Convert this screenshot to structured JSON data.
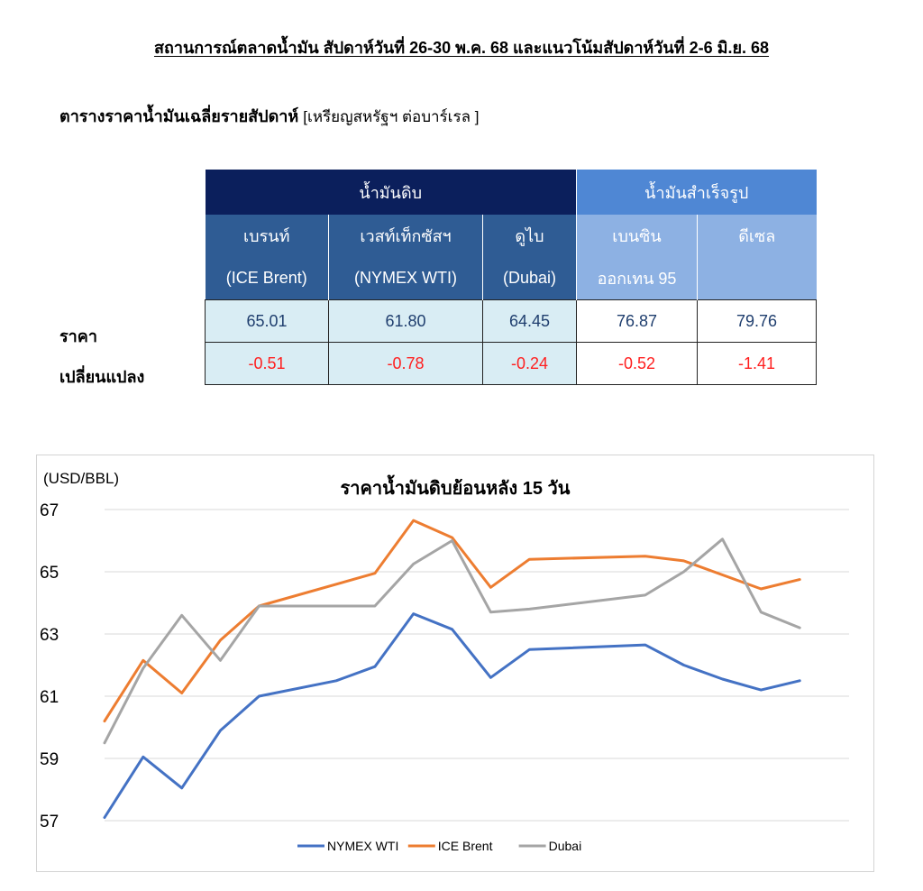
{
  "header": {
    "title": "สถานการณ์ตลาดน้ำมัน สัปดาห์วันที่ 26-30 พ.ค. 68 และแนวโน้มสัปดาห์วันที่ 2-6 มิ.ย. 68",
    "table_title": "ตารางราคาน้ำมันเฉลี่ยรายสัปดาห์",
    "table_unit": "[เหรียญสหรัฐฯ ต่อบาร์เรล ]"
  },
  "table": {
    "group_crude": "น้ำมันดิบ",
    "group_refined": "น้ำมันสำเร็จรูป",
    "columns": [
      {
        "line1": "เบรนท์",
        "line2": "(ICE Brent)"
      },
      {
        "line1": "เวสท์เท็กซัสฯ",
        "line2": "(NYMEX WTI)"
      },
      {
        "line1": "ดูไบ",
        "line2": "(Dubai)"
      },
      {
        "line1": "เบนซิน",
        "line2": "ออกเทน 95"
      },
      {
        "line1": "ดีเซล",
        "line2": ""
      }
    ],
    "row_price_label": "ราคา",
    "row_change_label": "เปลี่ยนแปลง",
    "price": [
      "65.01",
      "61.80",
      "64.45",
      "76.87",
      "79.76"
    ],
    "change": [
      "-0.51",
      "-0.78",
      "-0.24",
      "-0.52",
      "-1.41"
    ],
    "colors": {
      "crude_header": "#0b1f5c",
      "refined_header": "#4f87d4",
      "change_text": "#ff1f1f"
    }
  },
  "chart_data": {
    "type": "line",
    "title": "ราคาน้ำมันดิบย้อนหลัง 15 วัน",
    "ylabel": "(USD/BBL)",
    "xlabel": "",
    "ylim": [
      57,
      67
    ],
    "yticks": [
      "67",
      "65",
      "63",
      "61",
      "59",
      "57"
    ],
    "grid": true,
    "legend_position": "bottom",
    "x": [
      1,
      2,
      3,
      4,
      5,
      6,
      7,
      8,
      9,
      10,
      11,
      12,
      13,
      14,
      15,
      16,
      17,
      18,
      19,
      20
    ],
    "series": [
      {
        "name": "NYMEX WTI",
        "color": "#4472c4",
        "points": [
          [
            1,
            57.1
          ],
          [
            2,
            59.05
          ],
          [
            3,
            58.05
          ],
          [
            4,
            59.9
          ],
          [
            5,
            61.0
          ],
          [
            7,
            61.5
          ],
          [
            8,
            61.95
          ],
          [
            9,
            63.65
          ],
          [
            10,
            63.15
          ],
          [
            11,
            61.6
          ],
          [
            12,
            62.5
          ],
          [
            15,
            62.65
          ],
          [
            16,
            62.0
          ],
          [
            17,
            61.55
          ],
          [
            18,
            61.2
          ],
          [
            19,
            61.5
          ]
        ]
      },
      {
        "name": "ICE Brent",
        "color": "#ed7d31",
        "points": [
          [
            1,
            60.2
          ],
          [
            2,
            62.15
          ],
          [
            3,
            61.1
          ],
          [
            4,
            62.8
          ],
          [
            5,
            63.9
          ],
          [
            8,
            64.95
          ],
          [
            9,
            66.65
          ],
          [
            10,
            66.1
          ],
          [
            11,
            64.5
          ],
          [
            12,
            65.4
          ],
          [
            15,
            65.5
          ],
          [
            16,
            65.35
          ],
          [
            18,
            64.45
          ],
          [
            19,
            64.75
          ]
        ]
      },
      {
        "name": "Dubai",
        "color": "#a5a5a5",
        "points": [
          [
            1,
            59.5
          ],
          [
            2,
            61.9
          ],
          [
            3,
            63.6
          ],
          [
            4,
            62.15
          ],
          [
            5,
            63.9
          ],
          [
            8,
            63.9
          ],
          [
            9,
            65.25
          ],
          [
            10,
            66.0
          ],
          [
            11,
            63.7
          ],
          [
            12,
            63.8
          ],
          [
            15,
            64.25
          ],
          [
            16,
            65.0
          ],
          [
            17,
            66.05
          ],
          [
            18,
            63.7
          ],
          [
            19,
            63.2
          ]
        ]
      }
    ]
  }
}
